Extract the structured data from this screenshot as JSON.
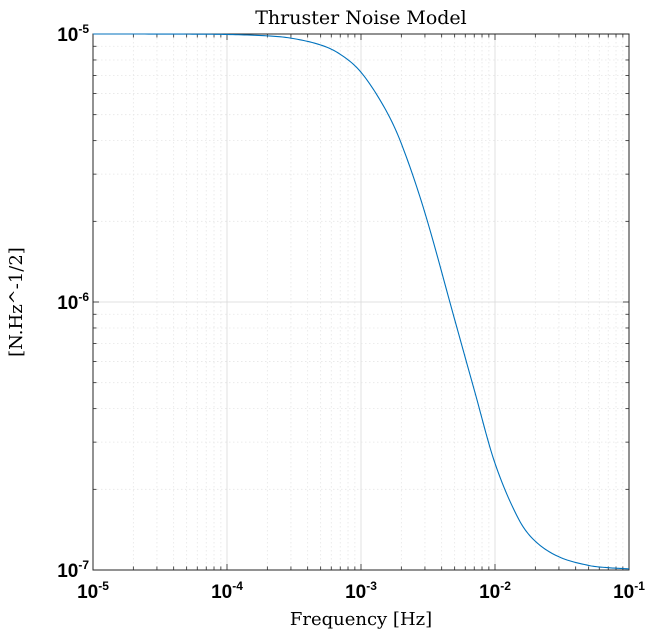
{
  "chart_data": {
    "type": "line",
    "title": "Thruster Noise Model",
    "xlabel": "Frequency [Hz]",
    "ylabel": "[N.Hz^-1/2]",
    "xscale": "log",
    "yscale": "log",
    "xlim": [
      1e-05,
      0.1
    ],
    "ylim": [
      1e-07,
      1e-05
    ],
    "grid": true,
    "minor_grid": true,
    "line_color": "#0072BD",
    "x_ticks": [
      {
        "base": "10",
        "exp": "-5",
        "value": 1e-05
      },
      {
        "base": "10",
        "exp": "-4",
        "value": 0.0001
      },
      {
        "base": "10",
        "exp": "-3",
        "value": 0.001
      },
      {
        "base": "10",
        "exp": "-2",
        "value": 0.01
      },
      {
        "base": "10",
        "exp": "-1",
        "value": 0.1
      }
    ],
    "y_ticks": [
      {
        "base": "10",
        "exp": "-7",
        "value": 1e-07
      },
      {
        "base": "10",
        "exp": "-6",
        "value": 1e-06
      },
      {
        "base": "10",
        "exp": "-5",
        "value": 1e-05
      }
    ],
    "series": [
      {
        "x": [
          1e-05,
          2e-05,
          5e-05,
          0.0001,
          0.0002,
          0.0003,
          0.0005,
          0.0007,
          0.001,
          0.0015,
          0.002,
          0.003,
          0.005,
          0.007,
          0.01,
          0.015,
          0.02,
          0.03,
          0.05,
          0.07,
          0.1
        ],
        "y": [
          1e-05,
          1e-05,
          9.99e-06,
          9.96e-06,
          9.84e-06,
          9.65e-06,
          9.1e-06,
          8.4e-06,
          7.2e-06,
          5.3e-06,
          3.9e-06,
          2.15e-06,
          8.6e-07,
          4.7e-07,
          2.5e-07,
          1.55e-07,
          1.28e-07,
          1.12e-07,
          1.04e-07,
          1.02e-07,
          1.01e-07
        ]
      }
    ]
  }
}
